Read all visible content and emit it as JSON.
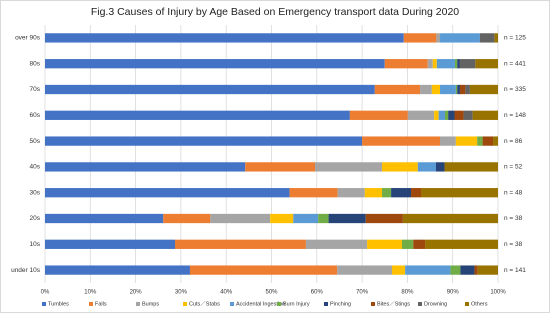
{
  "chart_data": {
    "type": "stacked-bar-horizontal",
    "title": "Fig.3 Causes of Injury by Age Based on Emergency transport data During 2020",
    "categories": [
      "over 90s",
      "80s",
      "70s",
      "60s",
      "50s",
      "40s",
      "30s",
      "20s",
      "10s",
      "under 10s"
    ],
    "n_labels": [
      "n = 125",
      "n = 441",
      "n = 335",
      "n = 148",
      "n = 86",
      "n = 52",
      "n = 48",
      "n = 38",
      "n = 38",
      "n = 141"
    ],
    "series": [
      {
        "name": "Tumbles",
        "color": "#4472c4",
        "values": [
          79.2,
          75,
          72.8,
          67.3,
          70,
          44.2,
          54,
          26.1,
          28.7,
          32
        ]
      },
      {
        "name": "Falls",
        "color": "#ed7d31",
        "values": [
          7.2,
          9.5,
          10,
          12.8,
          17.2,
          15.4,
          10.6,
          10.4,
          28.9,
          32.5
        ]
      },
      {
        "name": "Bumps",
        "color": "#a5a5a5",
        "values": [
          0.8,
          1.1,
          2.6,
          5.8,
          3.5,
          14.8,
          6,
          13.2,
          13.5,
          12.1
        ]
      },
      {
        "name": "Cuts／Stabs",
        "color": "#ffc000",
        "values": [
          0,
          0.9,
          1.8,
          1,
          4.7,
          7.9,
          3.8,
          5.1,
          7.7,
          2.9
        ]
      },
      {
        "name": "Accidental Ingestion",
        "color": "#5b9bd5",
        "values": [
          8.8,
          4,
          3.5,
          1.4,
          0,
          4,
          0,
          5.5,
          0,
          10
        ]
      },
      {
        "name": "Burn Injury",
        "color": "#70ad47",
        "values": [
          0,
          0.5,
          0.3,
          0.7,
          1.2,
          0,
          2,
          2.3,
          2.5,
          2.2
        ]
      },
      {
        "name": "Pinching",
        "color": "#264478",
        "values": [
          0,
          0.5,
          0.6,
          1.4,
          0,
          1.9,
          4.4,
          8.2,
          0,
          3.1
        ]
      },
      {
        "name": "Bites／Stings",
        "color": "#9e480e",
        "values": [
          0,
          0,
          1.2,
          2,
          2.3,
          0,
          2.2,
          8.2,
          2.6,
          0.7
        ]
      },
      {
        "name": "Drowning",
        "color": "#636363",
        "values": [
          3.2,
          3.5,
          1,
          2,
          0,
          0,
          0,
          0,
          0,
          0
        ]
      },
      {
        "name": "Others",
        "color": "#997300",
        "values": [
          0.8,
          5,
          6.2,
          5.6,
          1.1,
          11.8,
          17,
          21,
          16.1,
          4.5
        ]
      }
    ],
    "xlim": [
      0,
      100
    ],
    "xticks": [
      {
        "value": 0,
        "label": "0%"
      },
      {
        "value": 10,
        "label": "10%"
      },
      {
        "value": 20,
        "label": "20%"
      },
      {
        "value": 30,
        "label": "30%"
      },
      {
        "value": 40,
        "label": "40%"
      },
      {
        "value": 50,
        "label": "50%"
      },
      {
        "value": 60,
        "label": "60%"
      },
      {
        "value": 70,
        "label": "70%"
      },
      {
        "value": 80,
        "label": "80%"
      },
      {
        "value": 90,
        "label": "90%"
      },
      {
        "value": 100,
        "label": "100%"
      }
    ],
    "grid": true
  }
}
